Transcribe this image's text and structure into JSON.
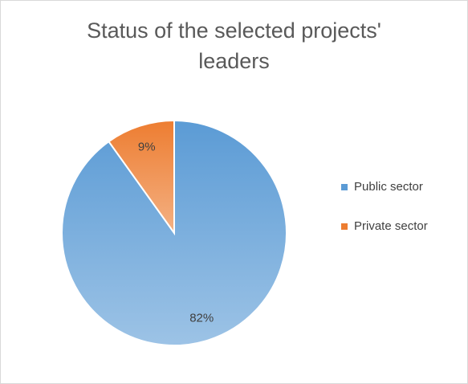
{
  "chart_data": {
    "type": "pie",
    "title": "Status of the selected projects' leaders",
    "categories": [
      "Public sector",
      "Private sector"
    ],
    "values": [
      82,
      9
    ],
    "value_labels": [
      "82%",
      "9%"
    ],
    "colors": [
      "#5b9bd5",
      "#ed7d31"
    ],
    "legend": "right"
  }
}
